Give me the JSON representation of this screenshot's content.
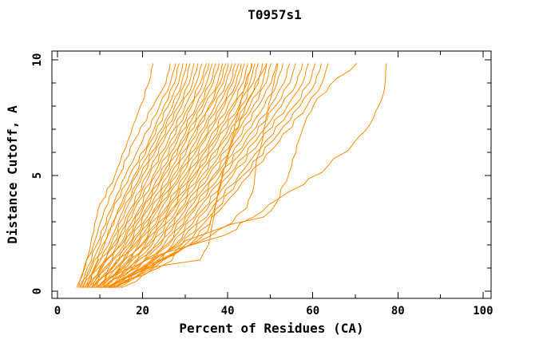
{
  "title": "T0957s1",
  "chart_data": {
    "type": "line",
    "title": "T0957s1",
    "xlabel": "Percent of Residues (CA)",
    "ylabel": "Distance Cutoff, A",
    "xlim": [
      -1.3,
      101.9
    ],
    "ylim": [
      -0.31,
      10.38
    ],
    "x_ticks_major": [
      0,
      20,
      40,
      60,
      80,
      100
    ],
    "x_ticks_minor": [
      10,
      30,
      50,
      70,
      90
    ],
    "y_ticks_major": [
      0,
      5,
      10
    ],
    "y_ticks_minor": [
      1,
      2,
      3,
      4,
      6,
      7,
      8,
      9
    ],
    "grid": false,
    "legend": "none",
    "line_color": "#ff8c00",
    "axis_color": "#000000",
    "background_color": "#ffffff",
    "y_grid": [
      0.15,
      1,
      2,
      3.5,
      5,
      6.5,
      8,
      9,
      9.85
    ],
    "series": [
      {
        "x": [
          4.5,
          6.5,
          7.8,
          9.5,
          13.5,
          16.5,
          19.5,
          21.5,
          22.5
        ]
      },
      {
        "x": [
          5.0,
          6.2,
          8.5,
          11.0,
          14.5,
          18.0,
          22.5,
          25.5,
          26.5
        ]
      },
      {
        "x": [
          5.5,
          7.0,
          9.2,
          12.5,
          16.0,
          20.0,
          24.0,
          26.5,
          27.8
        ]
      },
      {
        "x": [
          6.0,
          7.6,
          10.0,
          13.0,
          17.0,
          21.5,
          25.0,
          27.5,
          28.6
        ]
      },
      {
        "x": [
          5.2,
          8.0,
          11.0,
          14.2,
          18.0,
          22.0,
          26.0,
          28.5,
          29.5
        ]
      },
      {
        "x": [
          6.5,
          8.6,
          10.6,
          14.6,
          18.6,
          23.0,
          27.0,
          29.2,
          30.4
        ]
      },
      {
        "x": [
          7.0,
          9.0,
          12.0,
          15.5,
          19.5,
          23.6,
          27.6,
          30.0,
          31.2
        ]
      },
      {
        "x": [
          5.8,
          8.8,
          12.6,
          16.0,
          20.0,
          24.2,
          28.5,
          31.0,
          32.1
        ]
      },
      {
        "x": [
          7.5,
          10.0,
          13.0,
          17.0,
          21.0,
          25.0,
          29.2,
          31.8,
          33.0
        ]
      },
      {
        "x": [
          6.2,
          9.6,
          13.6,
          17.6,
          21.6,
          26.0,
          30.0,
          32.6,
          34.0
        ]
      },
      {
        "x": [
          8.0,
          10.5,
          14.0,
          18.0,
          22.5,
          26.6,
          31.0,
          33.6,
          35.0
        ]
      },
      {
        "x": [
          6.8,
          10.2,
          14.6,
          19.0,
          23.0,
          27.6,
          31.6,
          34.2,
          35.6
        ]
      },
      {
        "x": [
          8.5,
          11.0,
          15.0,
          19.6,
          24.0,
          28.2,
          32.6,
          35.0,
          36.4
        ]
      },
      {
        "x": [
          7.2,
          11.6,
          15.6,
          20.0,
          24.6,
          29.0,
          33.2,
          36.0,
          37.2
        ]
      },
      {
        "x": [
          9.0,
          12.0,
          16.0,
          20.6,
          25.0,
          29.6,
          34.0,
          36.6,
          38.0
        ]
      },
      {
        "x": [
          7.8,
          12.6,
          16.6,
          21.2,
          26.0,
          30.2,
          34.6,
          37.6,
          38.8
        ]
      },
      {
        "x": [
          9.5,
          13.0,
          17.2,
          22.0,
          26.6,
          31.0,
          35.6,
          38.2,
          39.6
        ]
      },
      {
        "x": [
          8.2,
          12.8,
          17.6,
          22.6,
          27.2,
          31.6,
          36.0,
          39.0,
          40.2
        ]
      },
      {
        "x": [
          10.0,
          13.6,
          18.0,
          23.0,
          28.0,
          32.6,
          37.0,
          39.6,
          41.0
        ]
      },
      {
        "x": [
          8.8,
          14.0,
          18.6,
          23.6,
          28.6,
          33.2,
          37.6,
          40.6,
          41.8
        ]
      },
      {
        "x": [
          10.5,
          14.5,
          19.0,
          24.2,
          29.0,
          34.0,
          38.6,
          41.2,
          42.6
        ]
      },
      {
        "x": [
          9.2,
          14.8,
          19.6,
          25.0,
          30.0,
          34.6,
          39.2,
          42.0,
          43.2
        ]
      },
      {
        "x": [
          11.0,
          15.2,
          20.0,
          25.6,
          30.6,
          35.6,
          40.0,
          42.6,
          44.0
        ]
      },
      {
        "x": [
          9.8,
          15.6,
          20.6,
          26.0,
          31.2,
          36.2,
          41.0,
          43.6,
          44.8
        ]
      },
      {
        "x": [
          11.5,
          16.0,
          21.0,
          26.6,
          32.0,
          37.0,
          41.6,
          44.6,
          45.6
        ]
      },
      {
        "x": [
          10.2,
          16.6,
          21.6,
          27.2,
          32.6,
          37.6,
          42.6,
          45.2,
          46.4
        ]
      },
      {
        "x": [
          12.0,
          17.0,
          22.2,
          28.0,
          33.2,
          38.6,
          43.2,
          46.0,
          47.2
        ]
      },
      {
        "x": [
          10.8,
          17.6,
          23.0,
          28.6,
          34.0,
          39.2,
          44.2,
          47.2,
          48.2
        ]
      },
      {
        "x": [
          12.5,
          18.0,
          23.6,
          29.2,
          35.0,
          40.2,
          45.2,
          48.2,
          49.2
        ]
      },
      {
        "x": [
          11.2,
          18.6,
          24.2,
          30.0,
          35.6,
          41.0,
          46.0,
          49.0,
          50.2
        ]
      },
      {
        "x": [
          13.0,
          19.0,
          25.0,
          30.6,
          36.6,
          42.0,
          47.2,
          50.2,
          51.6
        ]
      },
      {
        "x": [
          11.8,
          19.6,
          25.6,
          31.6,
          37.2,
          43.2,
          48.6,
          51.6,
          53.0
        ]
      },
      {
        "x": [
          13.5,
          20.2,
          26.2,
          32.2,
          38.2,
          44.2,
          50.0,
          53.2,
          54.6
        ]
      },
      {
        "x": [
          12.2,
          20.6,
          27.0,
          33.0,
          39.0,
          45.2,
          51.2,
          54.6,
          56.0
        ]
      },
      {
        "x": [
          14.0,
          21.2,
          27.6,
          34.0,
          40.2,
          46.6,
          52.6,
          56.2,
          57.6
        ]
      },
      {
        "x": [
          12.8,
          21.6,
          28.2,
          35.0,
          41.2,
          47.6,
          54.0,
          57.6,
          59.0
        ]
      },
      {
        "x": [
          14.5,
          22.2,
          29.2,
          36.0,
          42.6,
          49.0,
          55.6,
          59.2,
          60.6
        ]
      },
      {
        "x": [
          13.2,
          22.6,
          30.0,
          37.0,
          43.6,
          50.6,
          57.0,
          60.6,
          62.0
        ]
      },
      {
        "x": [
          15.0,
          23.6,
          31.0,
          38.2,
          45.0,
          52.2,
          58.6,
          62.2,
          63.6
        ]
      },
      {
        "points": [
          [
            12.5,
            0.2
          ],
          [
            15,
            0.5
          ],
          [
            18.5,
            0.9
          ],
          [
            26,
            1.15
          ],
          [
            33.5,
            1.35
          ],
          [
            35.5,
            2.0
          ],
          [
            36.5,
            3.0
          ],
          [
            38,
            4.5
          ],
          [
            40.2,
            6.0
          ],
          [
            42.2,
            7.5
          ],
          [
            44.2,
            9.0
          ],
          [
            45.8,
            9.85
          ]
        ]
      },
      {
        "points": [
          [
            14,
            0.25
          ],
          [
            18.4,
            0.62
          ],
          [
            24,
            1.3
          ],
          [
            29,
            1.8
          ],
          [
            33,
            2.2
          ],
          [
            35.3,
            2.6
          ],
          [
            36.8,
            3.5
          ],
          [
            38.8,
            5.0
          ],
          [
            41.2,
            6.5
          ],
          [
            44.2,
            8.0
          ],
          [
            47.6,
            9.3
          ],
          [
            49.2,
            9.85
          ]
        ]
      },
      {
        "points": [
          [
            12,
            0.2
          ],
          [
            16,
            0.6
          ],
          [
            22,
            1.2
          ],
          [
            30,
            1.9
          ],
          [
            36,
            2.4
          ],
          [
            41,
            2.95
          ],
          [
            44.5,
            3.6
          ],
          [
            46.2,
            4.6
          ],
          [
            46.8,
            5.7
          ],
          [
            48,
            6.4
          ],
          [
            49,
            7.5
          ],
          [
            50.5,
            8.7
          ],
          [
            51.8,
            9.85
          ]
        ]
      },
      {
        "points": [
          [
            13,
            0.25
          ],
          [
            17,
            0.7
          ],
          [
            22.5,
            1.3
          ],
          [
            28,
            1.9
          ],
          [
            35,
            2.5
          ],
          [
            41,
            2.9
          ],
          [
            48.4,
            3.2
          ],
          [
            51.2,
            3.75
          ],
          [
            54.4,
            5.1
          ],
          [
            56.9,
            6.6
          ],
          [
            58.2,
            7.3
          ],
          [
            60.2,
            8.05
          ],
          [
            64,
            8.9
          ],
          [
            70.3,
            9.85
          ]
        ]
      },
      {
        "points": [
          [
            11,
            0.3
          ],
          [
            14.6,
            0.8
          ],
          [
            18.4,
            1.1
          ],
          [
            25.3,
            1.66
          ],
          [
            33.4,
            2.1
          ],
          [
            39,
            2.4
          ],
          [
            46,
            3.2
          ],
          [
            52,
            4.0
          ],
          [
            57.8,
            4.6
          ],
          [
            63.5,
            5.4
          ],
          [
            69.6,
            6.4
          ],
          [
            73.4,
            7.2
          ],
          [
            76.2,
            8.3
          ],
          [
            76.9,
            8.85
          ],
          [
            77.3,
            9.85
          ]
        ]
      }
    ]
  }
}
